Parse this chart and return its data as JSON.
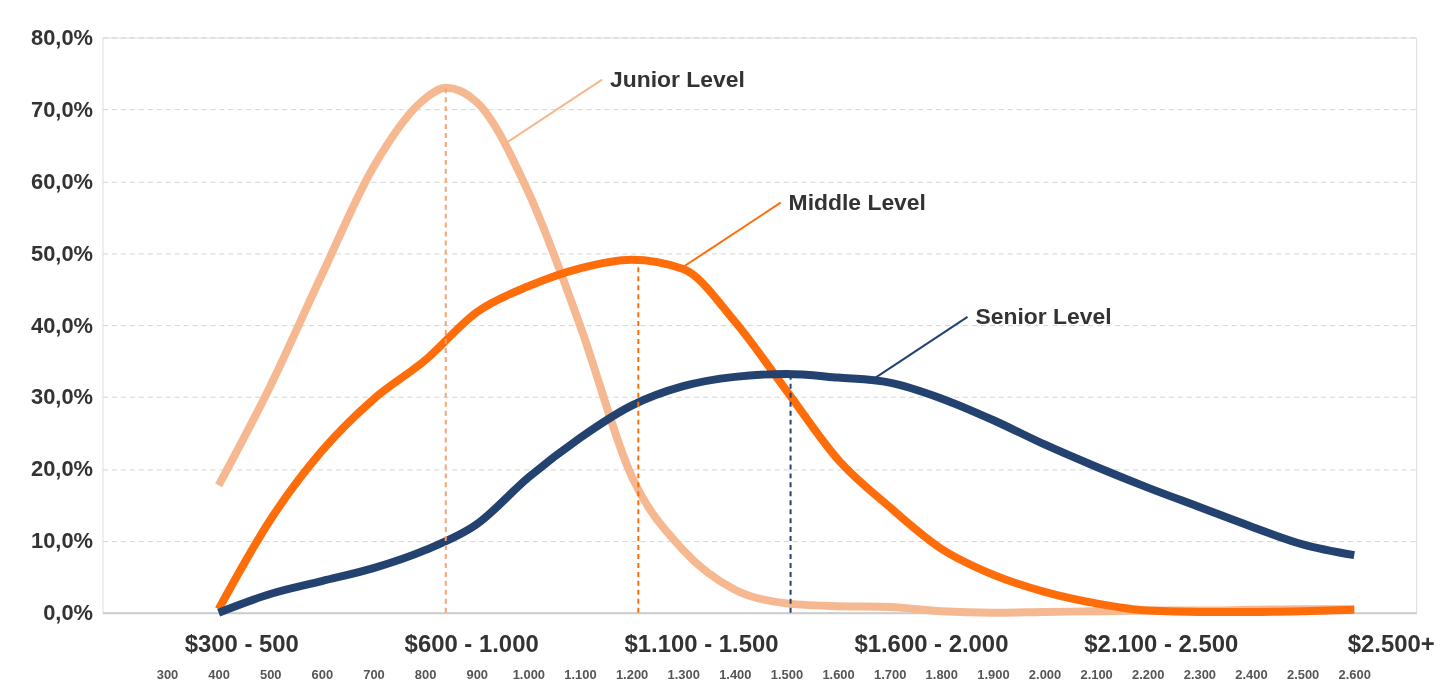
{
  "chart_data": {
    "type": "line",
    "x": [
      400,
      500,
      600,
      700,
      800,
      900,
      1000,
      1100,
      1200,
      1300,
      1400,
      1500,
      1600,
      1700,
      1800,
      1900,
      2000,
      2100,
      2200,
      2300,
      2400,
      2500,
      2600
    ],
    "series": [
      {
        "color": "#f5b891",
        "x": [
          400,
          500,
          600,
          700,
          800,
          840,
          900,
          1000,
          1100,
          1200,
          1300,
          1400,
          1500,
          1600,
          1700,
          1800,
          1900,
          2000,
          2100,
          2200,
          2300,
          2400,
          2500,
          2600
        ],
        "values": [
          17.7,
          31.5,
          47,
          62,
          71.5,
          73,
          71,
          58.5,
          40,
          19,
          8.7,
          3.2,
          1.3,
          0.9,
          0.8,
          0.2,
          0,
          0.1,
          0.2,
          0.3,
          0.3,
          0.4,
          0.5,
          0.5
        ]
      },
      {
        "color": "#ff6d0a",
        "values": [
          0.5,
          12.9,
          22.5,
          29.7,
          35.1,
          41.8,
          45.4,
          47.9,
          49.1,
          47.8,
          40.5,
          30.9,
          21.3,
          14.7,
          8.9,
          5.3,
          2.9,
          1.3,
          0.3,
          0.1,
          0.1,
          0.2,
          0.4
        ]
      },
      {
        "color": "#23426f",
        "values": [
          0,
          2.6,
          4.4,
          6.2,
          8.7,
          12.3,
          18.8,
          24.3,
          28.8,
          31.5,
          32.8,
          33.2,
          32.7,
          32,
          29.8,
          26.8,
          23.4,
          20.3,
          17.4,
          14.7,
          12,
          9.5,
          8
        ]
      }
    ],
    "xlim": [
      175,
      2720
    ],
    "xticks": [
      300,
      400,
      500,
      600,
      700,
      800,
      900,
      {
        "value": 1000,
        "label": "1.000"
      },
      {
        "value": 1100,
        "label": "1.100"
      },
      {
        "value": 1200,
        "label": "1.200"
      },
      {
        "value": 1300,
        "label": "1.300"
      },
      {
        "value": 1400,
        "label": "1.400"
      },
      {
        "value": 1500,
        "label": "1.500"
      },
      {
        "value": 1600,
        "label": "1.600"
      },
      {
        "value": 1700,
        "label": "1.700"
      },
      {
        "value": 1800,
        "label": "1.800"
      },
      {
        "value": 1900,
        "label": "1.900"
      },
      {
        "value": 2000,
        "label": "2.000"
      },
      {
        "value": 2100,
        "label": "2.100"
      },
      {
        "value": 2200,
        "label": "2.200"
      },
      {
        "value": 2300,
        "label": "2.300"
      },
      {
        "value": 2400,
        "label": "2.400"
      },
      {
        "value": 2500,
        "label": "2.500"
      },
      {
        "value": 2600,
        "label": "2.600"
      }
    ],
    "ylim": [
      0,
      80
    ],
    "yticks": [
      {
        "value": 0,
        "label": "0,0%"
      },
      {
        "value": 10,
        "label": "10,0%"
      },
      {
        "value": 20,
        "label": "20,0%"
      },
      {
        "value": 30,
        "label": "30,0%"
      },
      {
        "value": 40,
        "label": "40,0%"
      },
      {
        "value": 50,
        "label": "50,0%"
      },
      {
        "value": 60,
        "label": "60,0%"
      },
      {
        "value": 70,
        "label": "70,0%"
      },
      {
        "value": 80,
        "label": "80,0%"
      }
    ],
    "ref_lines": [
      {
        "axis": "x",
        "value": 840,
        "color": "#f9a26c",
        "line_style": "dashed"
      },
      {
        "axis": "x",
        "value": 1213,
        "color": "#ff6d0a",
        "line_style": "dashed"
      },
      {
        "axis": "x",
        "value": 1508,
        "color": "#23426f",
        "line_style": "dashed"
      }
    ],
    "annotations": [
      {
        "text": "Junior Level",
        "x": 950,
        "y": 65
      },
      {
        "text": "Middle Level",
        "x": 1296,
        "y": 47.9
      },
      {
        "text": "Senior Level",
        "x": 1658,
        "y": 32
      },
      "$300 - 500",
      "$600 - 1.000",
      "$1.100 - 1.500",
      "$1.600 - 2.000",
      "$2.100 - 2.500",
      "$2.500+"
    ],
    "grid": "y",
    "marker": "none",
    "line_style": "solid"
  }
}
